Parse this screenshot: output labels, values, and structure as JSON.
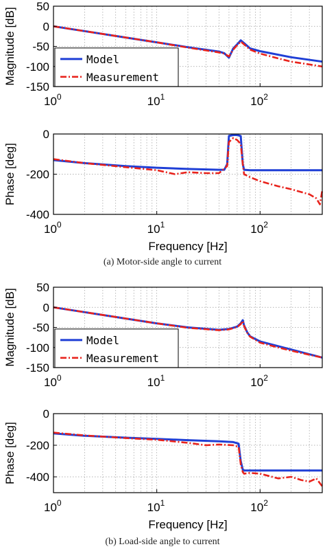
{
  "captions": {
    "a": "(a) Motor-side angle to current",
    "b": "(b) Load-side angle to current"
  },
  "colors": {
    "model": "#1f3fd6",
    "measurement": "#e8231c",
    "axis": "#000000",
    "grid": "#9a9a9a"
  },
  "chart_data": [
    {
      "type": "line",
      "panel": "a-magnitude",
      "xscale": "log",
      "xlim": [
        1,
        400
      ],
      "ylim": [
        -150,
        50
      ],
      "ylabel": "Magnitude [dB]",
      "xlabel": "",
      "yticks": [
        50,
        0,
        -50,
        -100,
        -150
      ],
      "xtick_labels": [
        "10^0",
        "10^1",
        "10^2"
      ],
      "grid": true,
      "legend": "left",
      "series": [
        {
          "name": "Model",
          "x": [
            1,
            2,
            5,
            10,
            20,
            40,
            45,
            50,
            55,
            60,
            65,
            70,
            80,
            100,
            200,
            400
          ],
          "y": [
            0,
            -12,
            -28,
            -40,
            -52,
            -63,
            -67,
            -78,
            -55,
            -45,
            -35,
            -42,
            -55,
            -62,
            -77,
            -88
          ]
        },
        {
          "name": "Measurement",
          "x": [
            1,
            2,
            5,
            10,
            20,
            40,
            45,
            50,
            55,
            60,
            65,
            70,
            80,
            100,
            150,
            200,
            300,
            400
          ],
          "y": [
            0,
            -12,
            -28,
            -40,
            -53,
            -65,
            -68,
            -75,
            -58,
            -47,
            -38,
            -45,
            -58,
            -68,
            -80,
            -88,
            -95,
            -100
          ]
        }
      ]
    },
    {
      "type": "line",
      "panel": "a-phase",
      "xscale": "log",
      "xlim": [
        1,
        400
      ],
      "ylim": [
        -400,
        0
      ],
      "ylabel": "Phase [deg]",
      "xlabel": "Frequency [Hz]",
      "yticks": [
        0,
        -200,
        -400
      ],
      "xtick_labels": [
        "10^0",
        "10^1",
        "10^2"
      ],
      "grid": true,
      "series": [
        {
          "name": "Model",
          "x": [
            1,
            2,
            5,
            10,
            20,
            40,
            45,
            48,
            50,
            55,
            60,
            65,
            68,
            70,
            80,
            100,
            200,
            400
          ],
          "y": [
            -130,
            -145,
            -160,
            -168,
            -174,
            -178,
            -178,
            -150,
            -10,
            -5,
            -5,
            -10,
            -150,
            -178,
            -180,
            -180,
            -180,
            -180
          ]
        },
        {
          "name": "Measurement",
          "x": [
            1,
            2,
            5,
            10,
            15,
            20,
            30,
            40,
            48,
            50,
            55,
            60,
            65,
            68,
            70,
            80,
            100,
            150,
            200,
            300,
            350,
            380,
            400
          ],
          "y": [
            -125,
            -145,
            -165,
            -180,
            -200,
            -190,
            -195,
            -195,
            -160,
            -40,
            -20,
            -30,
            -50,
            -150,
            -200,
            -215,
            -235,
            -260,
            -275,
            -300,
            -320,
            -350,
            -280
          ]
        }
      ]
    },
    {
      "type": "line",
      "panel": "b-magnitude",
      "xscale": "log",
      "xlim": [
        1,
        400
      ],
      "ylim": [
        -150,
        50
      ],
      "ylabel": "Magnitude [dB]",
      "xlabel": "",
      "yticks": [
        50,
        0,
        -50,
        -100,
        -150
      ],
      "xtick_labels": [
        "10^0",
        "10^1",
        "10^2"
      ],
      "grid": true,
      "legend": "left",
      "series": [
        {
          "name": "Model",
          "x": [
            1,
            2,
            5,
            10,
            20,
            40,
            50,
            60,
            65,
            68,
            70,
            75,
            80,
            100,
            200,
            400
          ],
          "y": [
            0,
            -12,
            -28,
            -40,
            -50,
            -56,
            -54,
            -48,
            -40,
            -32,
            -45,
            -62,
            -72,
            -85,
            -105,
            -125
          ]
        },
        {
          "name": "Measurement",
          "x": [
            1,
            2,
            5,
            10,
            20,
            40,
            50,
            60,
            65,
            68,
            70,
            75,
            80,
            100,
            150,
            200,
            300,
            400
          ],
          "y": [
            0,
            -12,
            -28,
            -40,
            -51,
            -57,
            -55,
            -49,
            -42,
            -34,
            -47,
            -63,
            -73,
            -88,
            -100,
            -108,
            -118,
            -125
          ]
        }
      ]
    },
    {
      "type": "line",
      "panel": "b-phase",
      "xscale": "log",
      "xlim": [
        1,
        400
      ],
      "ylim": [
        -500,
        0
      ],
      "ylabel": "Phase [deg]",
      "xlabel": "Frequency [Hz]",
      "yticks": [
        0,
        -200,
        -400
      ],
      "xtick_labels": [
        "10^0",
        "10^1",
        "10^2"
      ],
      "grid": true,
      "series": [
        {
          "name": "Model",
          "x": [
            1,
            2,
            5,
            10,
            20,
            40,
            55,
            62,
            65,
            68,
            70,
            80,
            100,
            200,
            400
          ],
          "y": [
            -125,
            -140,
            -152,
            -160,
            -168,
            -175,
            -180,
            -190,
            -300,
            -355,
            -360,
            -360,
            -360,
            -360,
            -360
          ]
        },
        {
          "name": "Measurement",
          "x": [
            1,
            2,
            5,
            10,
            20,
            30,
            40,
            55,
            62,
            65,
            68,
            70,
            80,
            100,
            150,
            200,
            250,
            300,
            350,
            400
          ],
          "y": [
            -120,
            -138,
            -155,
            -165,
            -185,
            -200,
            -195,
            -200,
            -210,
            -320,
            -370,
            -380,
            -375,
            -380,
            -410,
            -400,
            -420,
            -430,
            -410,
            -460
          ]
        }
      ]
    }
  ]
}
